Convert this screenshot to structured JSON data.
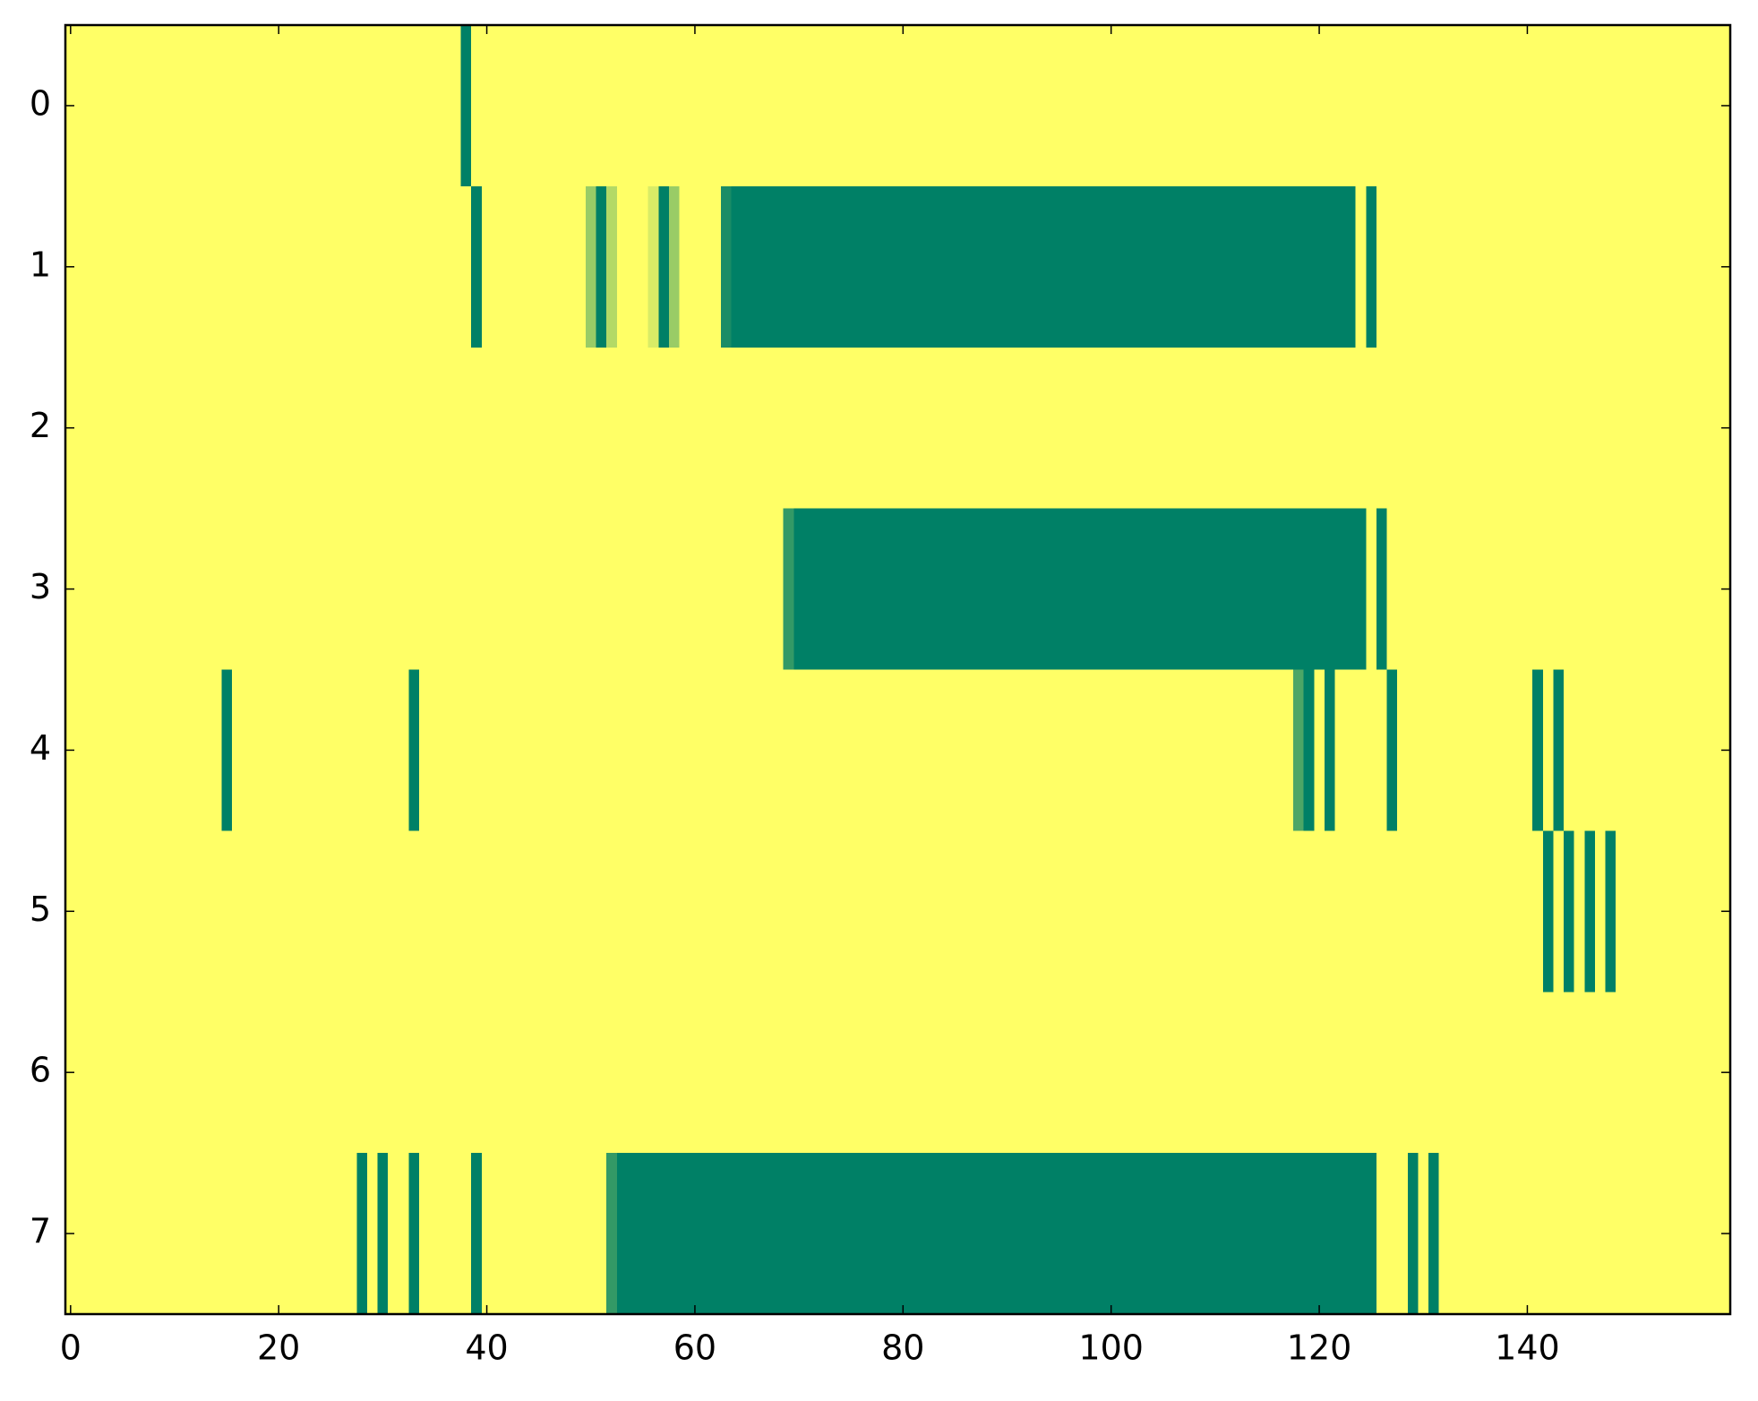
{
  "chart_data": {
    "type": "heatmap",
    "colormap": "summer",
    "xlim": [
      -0.5,
      159.5
    ],
    "ylim": [
      7.5,
      -0.5
    ],
    "xticks": [
      0,
      20,
      40,
      60,
      80,
      100,
      120,
      140
    ],
    "yticks": [
      0,
      1,
      2,
      3,
      4,
      5,
      6,
      7
    ],
    "z": [
      [
        1,
        1,
        1,
        1,
        1,
        1,
        1,
        1,
        1,
        1,
        1,
        1,
        1,
        1,
        1,
        1,
        1,
        1,
        1,
        1,
        1,
        1,
        1,
        1,
        1,
        1,
        1,
        1,
        1,
        1,
        1,
        1,
        1,
        1,
        1,
        1,
        1,
        1,
        0,
        1,
        1,
        1,
        1,
        1,
        1,
        1,
        1,
        1,
        1,
        1,
        1,
        1,
        1,
        1,
        1,
        1,
        1,
        1,
        1,
        1,
        1,
        1,
        1,
        1,
        1,
        1,
        1,
        1,
        1,
        1,
        1,
        1,
        1,
        1,
        1,
        1,
        1,
        1,
        1,
        1,
        1,
        1,
        1,
        1,
        1,
        1,
        1,
        1,
        1,
        1,
        1,
        1,
        1,
        1,
        1,
        1,
        1,
        1,
        1,
        1,
        1,
        1,
        1,
        1,
        1,
        1,
        1,
        1,
        1,
        1,
        1,
        1,
        1,
        1,
        1,
        1,
        1,
        1,
        1,
        1,
        1,
        1,
        1,
        1,
        1,
        1,
        1,
        1,
        1,
        1,
        1,
        1,
        1,
        1,
        1,
        1,
        1,
        1,
        1,
        1,
        1,
        1,
        1,
        1,
        1,
        1,
        1,
        1,
        1,
        1,
        1,
        1,
        1,
        1,
        1,
        1,
        1,
        1,
        1,
        1
      ],
      [
        1,
        1,
        1,
        1,
        1,
        1,
        1,
        1,
        1,
        1,
        1,
        1,
        1,
        1,
        1,
        1,
        1,
        1,
        1,
        1,
        1,
        1,
        1,
        1,
        1,
        1,
        1,
        1,
        1,
        1,
        1,
        1,
        1,
        1,
        1,
        1,
        1,
        1,
        1,
        0,
        1,
        1,
        1,
        1,
        1,
        1,
        1,
        1,
        1,
        1,
        0.6,
        0,
        0.7,
        1,
        1,
        1,
        0.85,
        0,
        0.6,
        1,
        1,
        1,
        1,
        0.1,
        0,
        0,
        0,
        0,
        0,
        0,
        0,
        0,
        0,
        0,
        0,
        0,
        0,
        0,
        0,
        0,
        0,
        0,
        0,
        0,
        0,
        0,
        0,
        0,
        0,
        0,
        0,
        0,
        0,
        0,
        0,
        0,
        0,
        0,
        0,
        0,
        0,
        0,
        0,
        0,
        0,
        0,
        0,
        0,
        0,
        0,
        0,
        0,
        0,
        0,
        0,
        0,
        0,
        0,
        0,
        0,
        0,
        0,
        0,
        0,
        1,
        0,
        1,
        1,
        1,
        1,
        1,
        1,
        1,
        1,
        1,
        1,
        1,
        1,
        1,
        1,
        1,
        1,
        1,
        1,
        1,
        1,
        1,
        1,
        1,
        1,
        1,
        1,
        1,
        1,
        1,
        1,
        1,
        1,
        1,
        1
      ],
      [
        1,
        1,
        1,
        1,
        1,
        1,
        1,
        1,
        1,
        1,
        1,
        1,
        1,
        1,
        1,
        1,
        1,
        1,
        1,
        1,
        1,
        1,
        1,
        1,
        1,
        1,
        1,
        1,
        1,
        1,
        1,
        1,
        1,
        1,
        1,
        1,
        1,
        1,
        1,
        1,
        1,
        1,
        1,
        1,
        1,
        1,
        1,
        1,
        1,
        1,
        1,
        1,
        1,
        1,
        1,
        1,
        1,
        1,
        1,
        1,
        1,
        1,
        1,
        1,
        1,
        1,
        1,
        1,
        1,
        1,
        1,
        1,
        1,
        1,
        1,
        1,
        1,
        1,
        1,
        1,
        1,
        1,
        1,
        1,
        1,
        1,
        1,
        1,
        1,
        1,
        1,
        1,
        1,
        1,
        1,
        1,
        1,
        1,
        1,
        1,
        1,
        1,
        1,
        1,
        1,
        1,
        1,
        1,
        1,
        1,
        1,
        1,
        1,
        1,
        1,
        1,
        1,
        1,
        1,
        1,
        1,
        1,
        1,
        1,
        1,
        1,
        1,
        1,
        1,
        1,
        1,
        1,
        1,
        1,
        1,
        1,
        1,
        1,
        1,
        1,
        1,
        1,
        1,
        1,
        1,
        1,
        1,
        1,
        1,
        1,
        1,
        1,
        1,
        1,
        1,
        1,
        1,
        1,
        1,
        1
      ],
      [
        1,
        1,
        1,
        1,
        1,
        1,
        1,
        1,
        1,
        1,
        1,
        1,
        1,
        1,
        1,
        1,
        1,
        1,
        1,
        1,
        1,
        1,
        1,
        1,
        1,
        1,
        1,
        1,
        1,
        1,
        1,
        1,
        1,
        1,
        1,
        1,
        1,
        1,
        1,
        1,
        1,
        1,
        1,
        1,
        1,
        1,
        1,
        1,
        1,
        1,
        1,
        1,
        1,
        1,
        1,
        1,
        1,
        1,
        1,
        1,
        1,
        1,
        1,
        1,
        1,
        1,
        1,
        1,
        1,
        0.2,
        0,
        0,
        0,
        0,
        0,
        0,
        0,
        0,
        0,
        0,
        0,
        0,
        0,
        0,
        0,
        0,
        0,
        0,
        0,
        0,
        0,
        0,
        0,
        0,
        0,
        0,
        0,
        0,
        0,
        0,
        0,
        0,
        0,
        0,
        0,
        0,
        0,
        0,
        0,
        0,
        0,
        0,
        0,
        0,
        0,
        0,
        0,
        0,
        0,
        0,
        0,
        0,
        0,
        0,
        0,
        1,
        0,
        1,
        1,
        1,
        1,
        1,
        1,
        1,
        1,
        1,
        1,
        1,
        1,
        1,
        1,
        1,
        1,
        1,
        1,
        1,
        1,
        1,
        1,
        1,
        1,
        1,
        1,
        1,
        1,
        1,
        1,
        1,
        1,
        1
      ],
      [
        1,
        1,
        1,
        1,
        1,
        1,
        1,
        1,
        1,
        1,
        1,
        1,
        1,
        1,
        1,
        0,
        1,
        1,
        1,
        1,
        1,
        1,
        1,
        1,
        1,
        1,
        1,
        1,
        1,
        1,
        1,
        1,
        1,
        0,
        1,
        1,
        1,
        1,
        1,
        1,
        1,
        1,
        1,
        1,
        1,
        1,
        1,
        1,
        1,
        1,
        1,
        1,
        1,
        1,
        1,
        1,
        1,
        1,
        1,
        1,
        1,
        1,
        1,
        1,
        1,
        1,
        1,
        1,
        1,
        1,
        1,
        1,
        1,
        1,
        1,
        1,
        1,
        1,
        1,
        1,
        1,
        1,
        1,
        1,
        1,
        1,
        1,
        1,
        1,
        1,
        1,
        1,
        1,
        1,
        1,
        1,
        1,
        1,
        1,
        1,
        1,
        1,
        1,
        1,
        1,
        1,
        1,
        1,
        1,
        1,
        1,
        1,
        1,
        1,
        1,
        1,
        1,
        1,
        0.3,
        0,
        1,
        0,
        1,
        1,
        1,
        1,
        1,
        0,
        1,
        1,
        1,
        1,
        1,
        1,
        1,
        1,
        1,
        1,
        1,
        1,
        1,
        0,
        1,
        0,
        1,
        1,
        1,
        1,
        1,
        1,
        1,
        1,
        1,
        1,
        1,
        1,
        1,
        1,
        1,
        1
      ],
      [
        1,
        1,
        1,
        1,
        1,
        1,
        1,
        1,
        1,
        1,
        1,
        1,
        1,
        1,
        1,
        1,
        1,
        1,
        1,
        1,
        1,
        1,
        1,
        1,
        1,
        1,
        1,
        1,
        1,
        1,
        1,
        1,
        1,
        1,
        1,
        1,
        1,
        1,
        1,
        1,
        1,
        1,
        1,
        1,
        1,
        1,
        1,
        1,
        1,
        1,
        1,
        1,
        1,
        1,
        1,
        1,
        1,
        1,
        1,
        1,
        1,
        1,
        1,
        1,
        1,
        1,
        1,
        1,
        1,
        1,
        1,
        1,
        1,
        1,
        1,
        1,
        1,
        1,
        1,
        1,
        1,
        1,
        1,
        1,
        1,
        1,
        1,
        1,
        1,
        1,
        1,
        1,
        1,
        1,
        1,
        1,
        1,
        1,
        1,
        1,
        1,
        1,
        1,
        1,
        1,
        1,
        1,
        1,
        1,
        1,
        1,
        1,
        1,
        1,
        1,
        1,
        1,
        1,
        1,
        1,
        1,
        1,
        1,
        1,
        1,
        1,
        1,
        1,
        1,
        1,
        1,
        1,
        1,
        1,
        1,
        1,
        1,
        1,
        1,
        1,
        1,
        1,
        0,
        1,
        0,
        1,
        0,
        1,
        0,
        1,
        1,
        1,
        1,
        1,
        1,
        1,
        1,
        1,
        1,
        1
      ],
      [
        1,
        1,
        1,
        1,
        1,
        1,
        1,
        1,
        1,
        1,
        1,
        1,
        1,
        1,
        1,
        1,
        1,
        1,
        1,
        1,
        1,
        1,
        1,
        1,
        1,
        1,
        1,
        1,
        1,
        1,
        1,
        1,
        1,
        1,
        1,
        1,
        1,
        1,
        1,
        1,
        1,
        1,
        1,
        1,
        1,
        1,
        1,
        1,
        1,
        1,
        1,
        1,
        1,
        1,
        1,
        1,
        1,
        1,
        1,
        1,
        1,
        1,
        1,
        1,
        1,
        1,
        1,
        1,
        1,
        1,
        1,
        1,
        1,
        1,
        1,
        1,
        1,
        1,
        1,
        1,
        1,
        1,
        1,
        1,
        1,
        1,
        1,
        1,
        1,
        1,
        1,
        1,
        1,
        1,
        1,
        1,
        1,
        1,
        1,
        1,
        1,
        1,
        1,
        1,
        1,
        1,
        1,
        1,
        1,
        1,
        1,
        1,
        1,
        1,
        1,
        1,
        1,
        1,
        1,
        1,
        1,
        1,
        1,
        1,
        1,
        1,
        1,
        1,
        1,
        1,
        1,
        1,
        1,
        1,
        1,
        1,
        1,
        1,
        1,
        1,
        1,
        1,
        1,
        1,
        1,
        1,
        1,
        1,
        1,
        1,
        1,
        1,
        1,
        1,
        1,
        1,
        1,
        1,
        1,
        1
      ],
      [
        1,
        1,
        1,
        1,
        1,
        1,
        1,
        1,
        1,
        1,
        1,
        1,
        1,
        1,
        1,
        1,
        1,
        1,
        1,
        1,
        1,
        1,
        1,
        1,
        1,
        1,
        1,
        1,
        0,
        1,
        0,
        1,
        1,
        0,
        1,
        1,
        1,
        1,
        1,
        0,
        1,
        1,
        1,
        1,
        1,
        1,
        1,
        1,
        1,
        1,
        1,
        1,
        0.2,
        0,
        0,
        0,
        0,
        0,
        0,
        0,
        0,
        0,
        0,
        0,
        0,
        0,
        0,
        0,
        0,
        0,
        0,
        0,
        0,
        0,
        0,
        0,
        0,
        0,
        0,
        0,
        0,
        0,
        0,
        0,
        0,
        0,
        0,
        0,
        0,
        0,
        0,
        0,
        0,
        0,
        0,
        0,
        0,
        0,
        0,
        0,
        0,
        0,
        0,
        0,
        0,
        0,
        0,
        0,
        0,
        0,
        0,
        0,
        0,
        0,
        0,
        0,
        0,
        0,
        0,
        0,
        0,
        0,
        0,
        0,
        0,
        0,
        1,
        1,
        1,
        0,
        1,
        0,
        1,
        1,
        1,
        1,
        1,
        1,
        1,
        1,
        1,
        1,
        1,
        1,
        1,
        1,
        1,
        1,
        1,
        1,
        1,
        1,
        1,
        1,
        1,
        1,
        1,
        1,
        1,
        1
      ]
    ]
  }
}
